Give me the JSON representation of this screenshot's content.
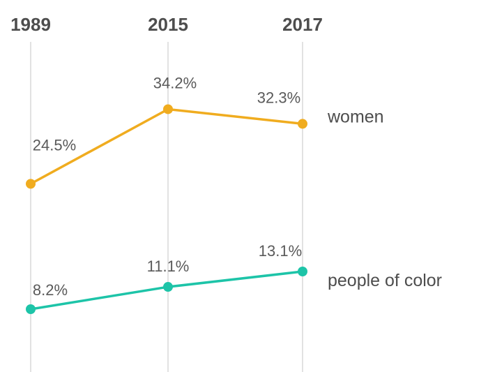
{
  "chart_data": {
    "type": "line",
    "x": [
      "1989",
      "2015",
      "2017"
    ],
    "series": [
      {
        "name": "women",
        "values": [
          24.5,
          34.2,
          32.3
        ],
        "labels": [
          "24.5%",
          "34.2%",
          "32.3%"
        ],
        "color": "#f0ac1f"
      },
      {
        "name": "people of color",
        "values": [
          8.2,
          11.1,
          13.1
        ],
        "labels": [
          "8.2%",
          "11.1%",
          "13.1%"
        ],
        "color": "#1dc4a8"
      }
    ],
    "grid": "vertical lines at each year",
    "legend": "series names at right end of lines"
  }
}
